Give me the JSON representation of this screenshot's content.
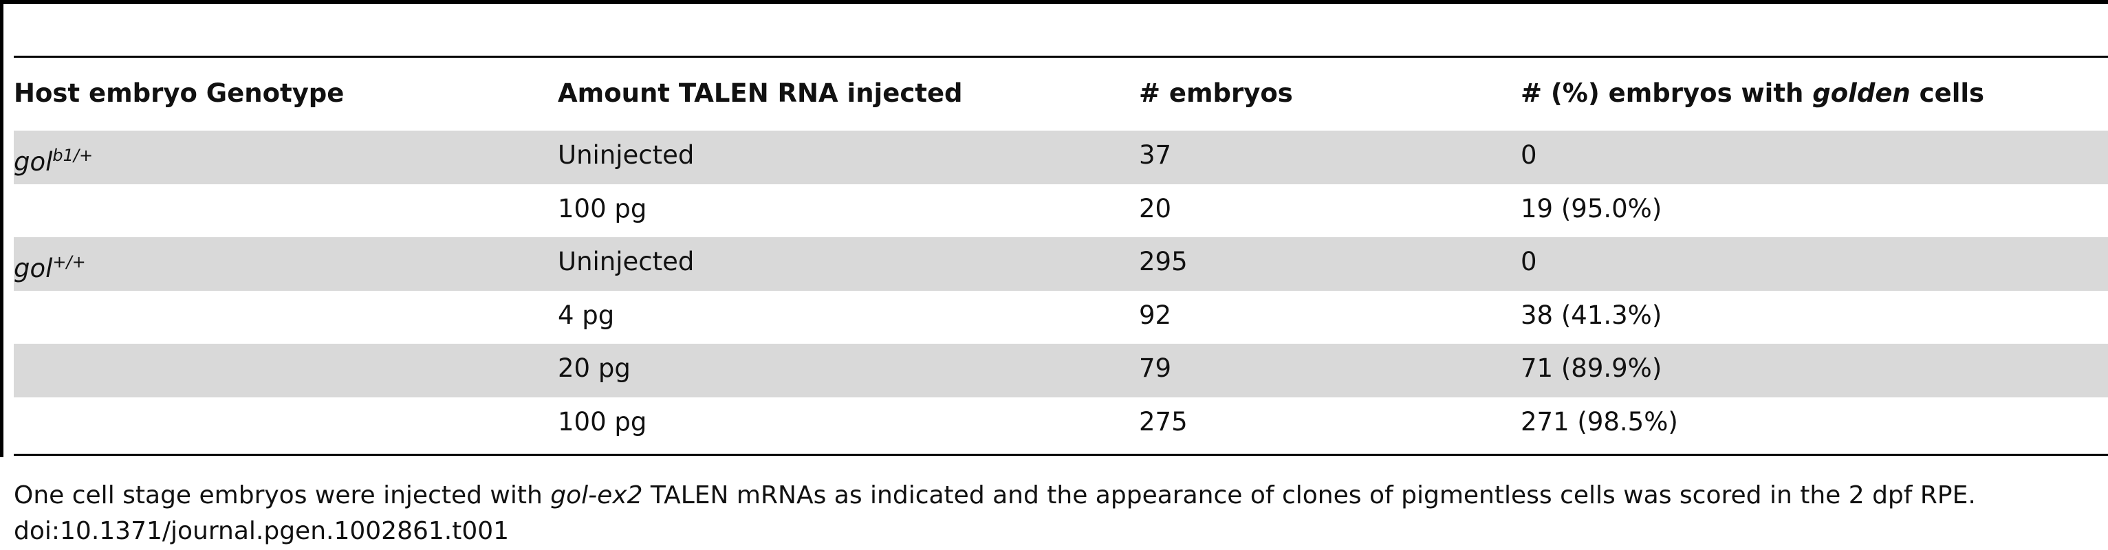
{
  "table": {
    "headers": [
      "Host embryo Genotype",
      "Amount TALEN RNA injected",
      "# embryos",
      {
        "parts": [
          "# (%) embryos with ",
          "golden",
          " cells"
        ]
      }
    ],
    "rows": [
      [
        {
          "text": "gol",
          "sup": "b1/+"
        },
        "Uninjected",
        "37",
        "0"
      ],
      [
        null,
        "100 pg",
        "20",
        "19 (95.0%)"
      ],
      [
        {
          "text": "gol",
          "sup": "+/+"
        },
        "Uninjected",
        "295",
        "0"
      ],
      [
        null,
        "4 pg",
        "92",
        "38 (41.3%)"
      ],
      [
        null,
        "20 pg",
        "79",
        "71 (89.9%)"
      ],
      [
        null,
        "100 pg",
        "275",
        "271 (98.5%)"
      ]
    ]
  },
  "footnote": {
    "parts": [
      "One cell stage embryos were injected with ",
      "gol-ex2",
      " TALEN mRNAs as indicated and the appearance of clones of pigmentless cells was scored in the 2 dpf RPE."
    ],
    "doi": "doi:10.1371/journal.pgen.1002861.t001"
  }
}
